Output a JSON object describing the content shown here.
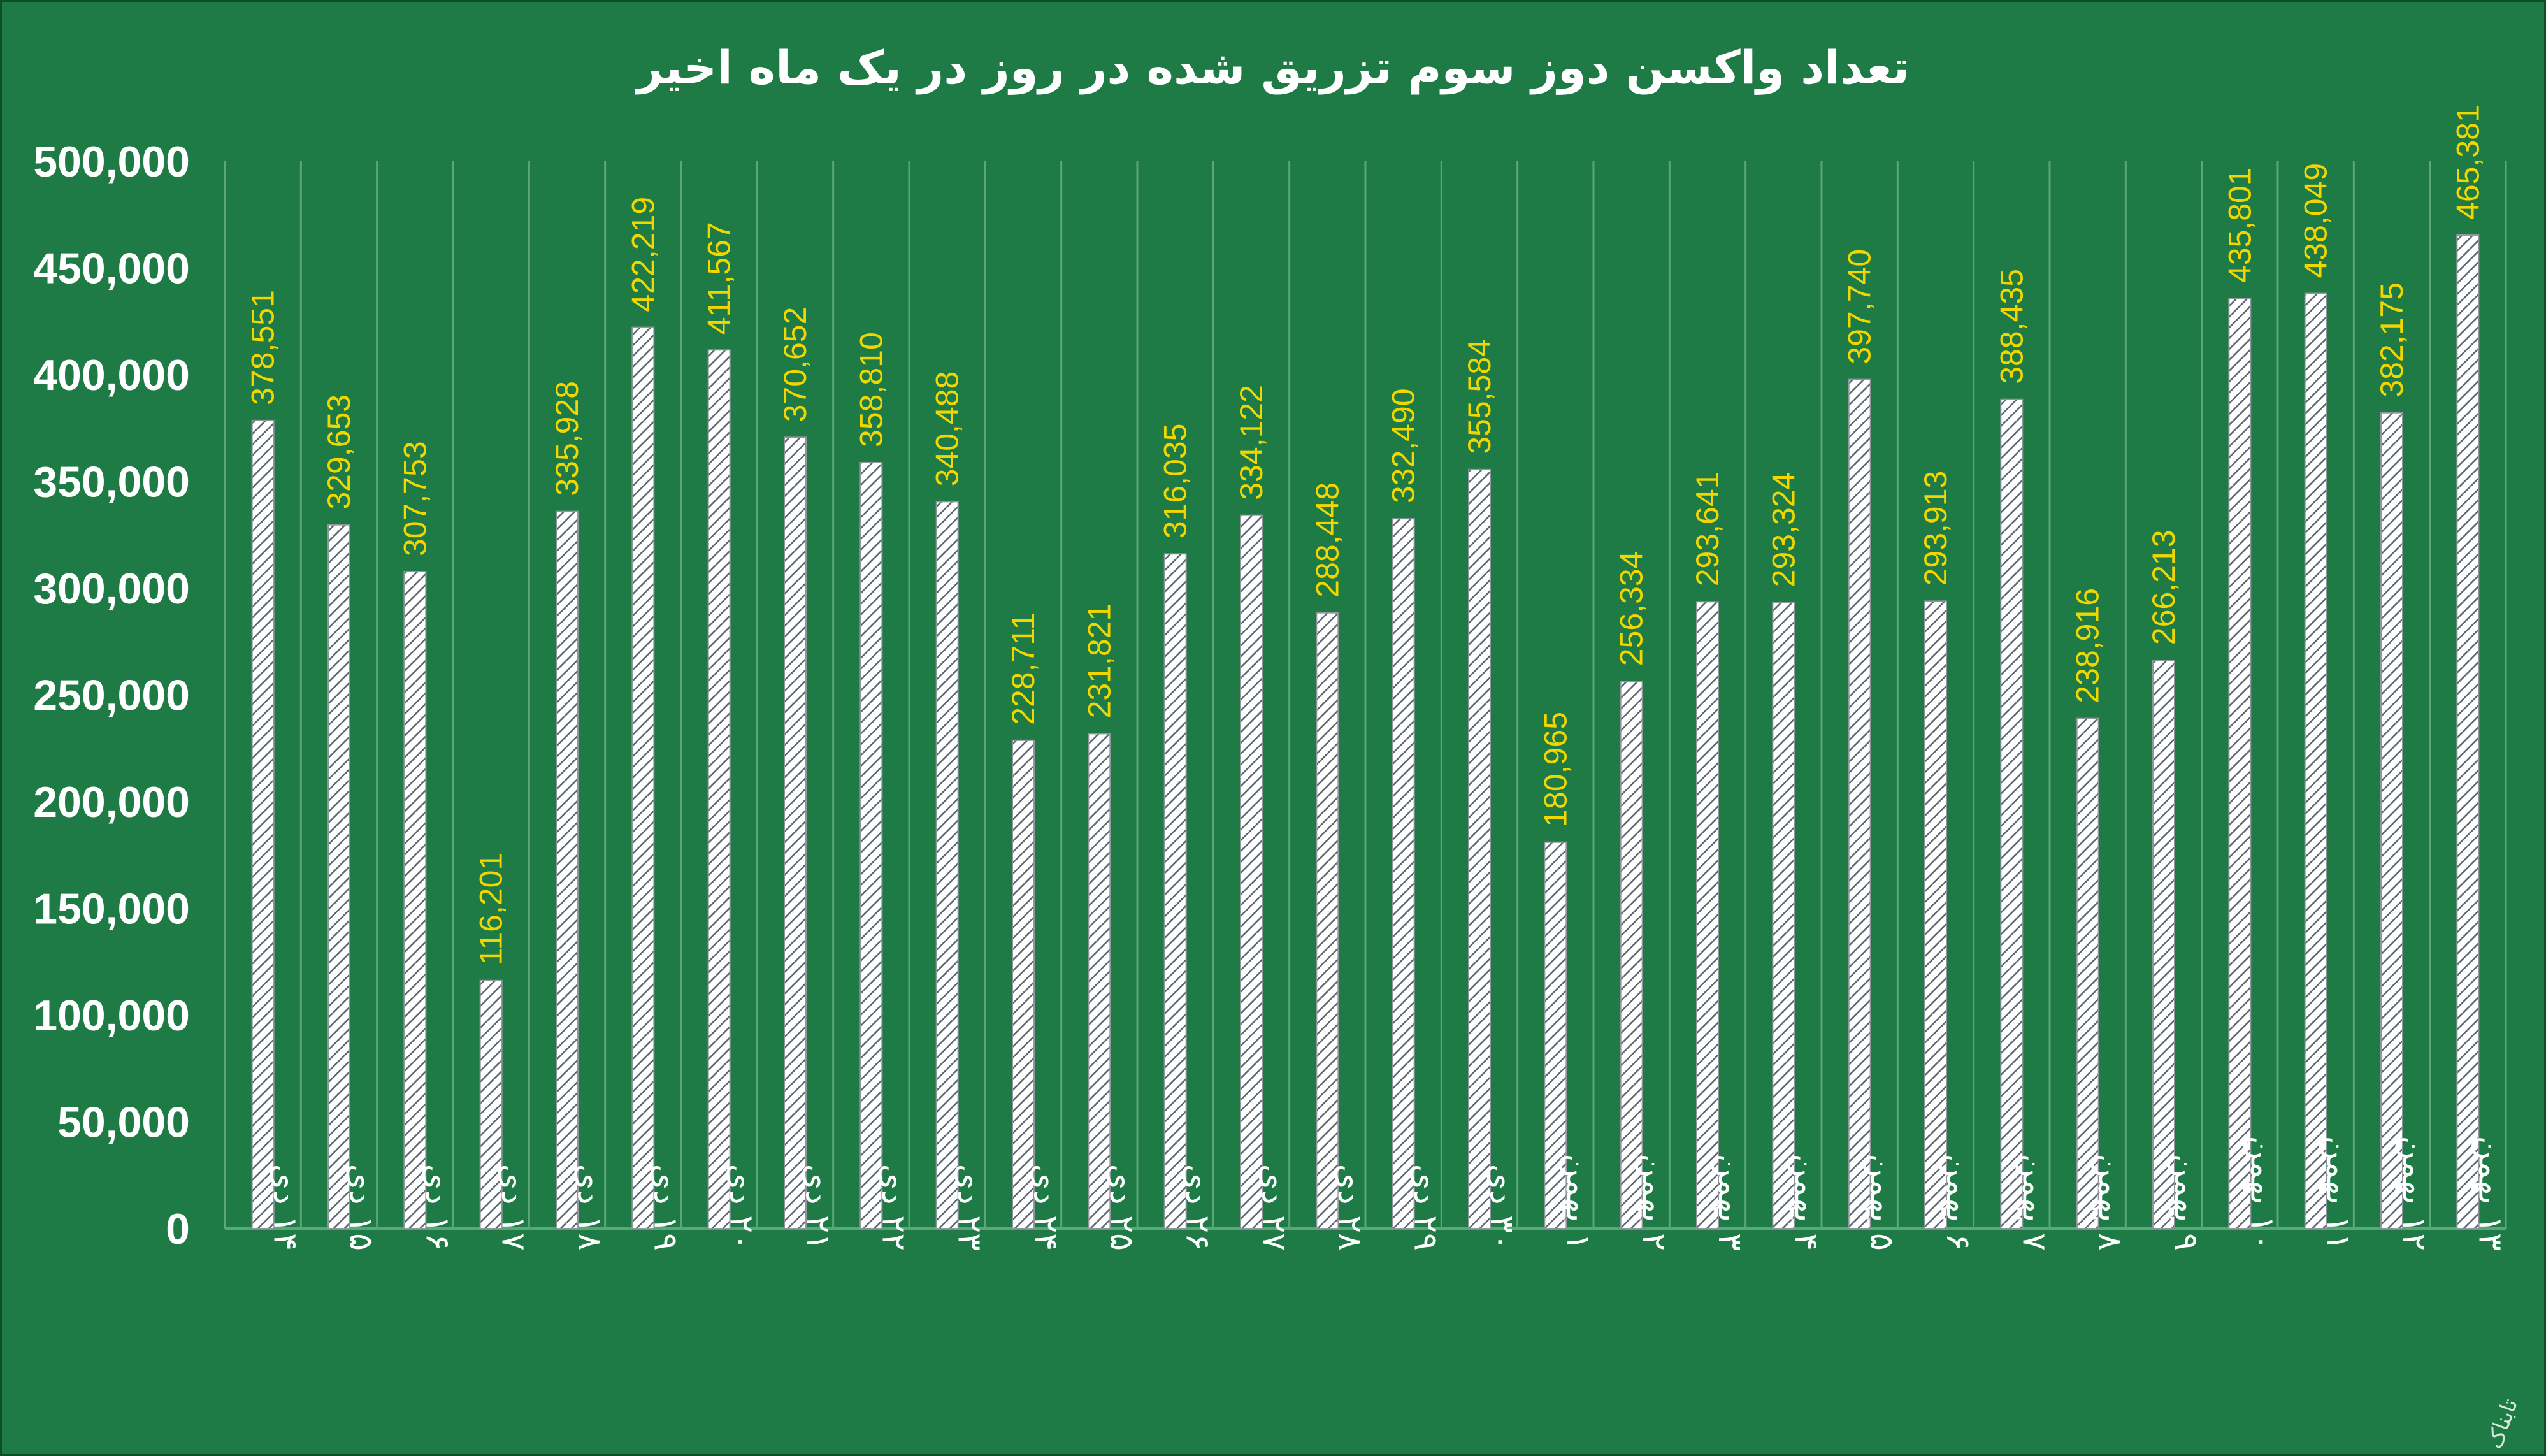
{
  "chart_data": {
    "type": "bar",
    "title": "تعداد واکسن دوز سوم تزریق شده در روز در یک ماه اخیر",
    "ylim": [
      0,
      500000
    ],
    "yticks": [
      "0",
      "50,000",
      "100,000",
      "150,000",
      "200,000",
      "250,000",
      "300,000",
      "350,000",
      "400,000",
      "450,000",
      "500,000"
    ],
    "grid": true,
    "categories": [
      "۱۴ دی",
      "۱۵ دی",
      "۱۶ دی",
      "۱۷ دی",
      "۱۸ دی",
      "۱۹ دی",
      "۲۰ دی",
      "۲۱ دی",
      "۲۲ دی",
      "۲۳ دی",
      "۲۴ دی",
      "۲۵ دی",
      "۲۶ دی",
      "۲۷ دی",
      "۲۸ دی",
      "۲۹ دی",
      "۳۰ دی",
      "۱ بهمن",
      "۲ بهمن",
      "۳ بهمن",
      "۴ بهمن",
      "۵ بهمن",
      "۶ بهمن",
      "۷ بهمن",
      "۸ بهمن",
      "۹ بهمن",
      "۱۰ بهمن",
      "۱۱ بهمن",
      "۱۲ بهمن",
      "۱۳ بهمن"
    ],
    "values": [
      378551,
      329653,
      307753,
      116201,
      335928,
      422219,
      411567,
      370652,
      358810,
      340488,
      228711,
      231821,
      316035,
      334122,
      288448,
      332490,
      355584,
      180965,
      256334,
      293641,
      293324,
      397740,
      293913,
      388435,
      238916,
      266213,
      435801,
      438049,
      382175,
      465381
    ],
    "data_labels": [
      "378,551",
      "329,653",
      "307,753",
      "116,201",
      "335,928",
      "422,219",
      "411,567",
      "370,652",
      "358,810",
      "340,488",
      "228,711",
      "231,821",
      "316,035",
      "334,122",
      "288,448",
      "332,490",
      "355,584",
      "180,965",
      "256,334",
      "293,641",
      "293,324",
      "397,740",
      "293,913",
      "388,435",
      "238,916",
      "266,213",
      "435,801",
      "438,049",
      "382,175",
      "465,381"
    ],
    "colors": {
      "background": "#1e7b45",
      "bar_fill": "#ffffff",
      "bar_hatch": "#5c6670",
      "data_label": "#f2d600",
      "text": "#ffffff",
      "grid": "#5aa77a"
    }
  },
  "watermark": "تابناک"
}
